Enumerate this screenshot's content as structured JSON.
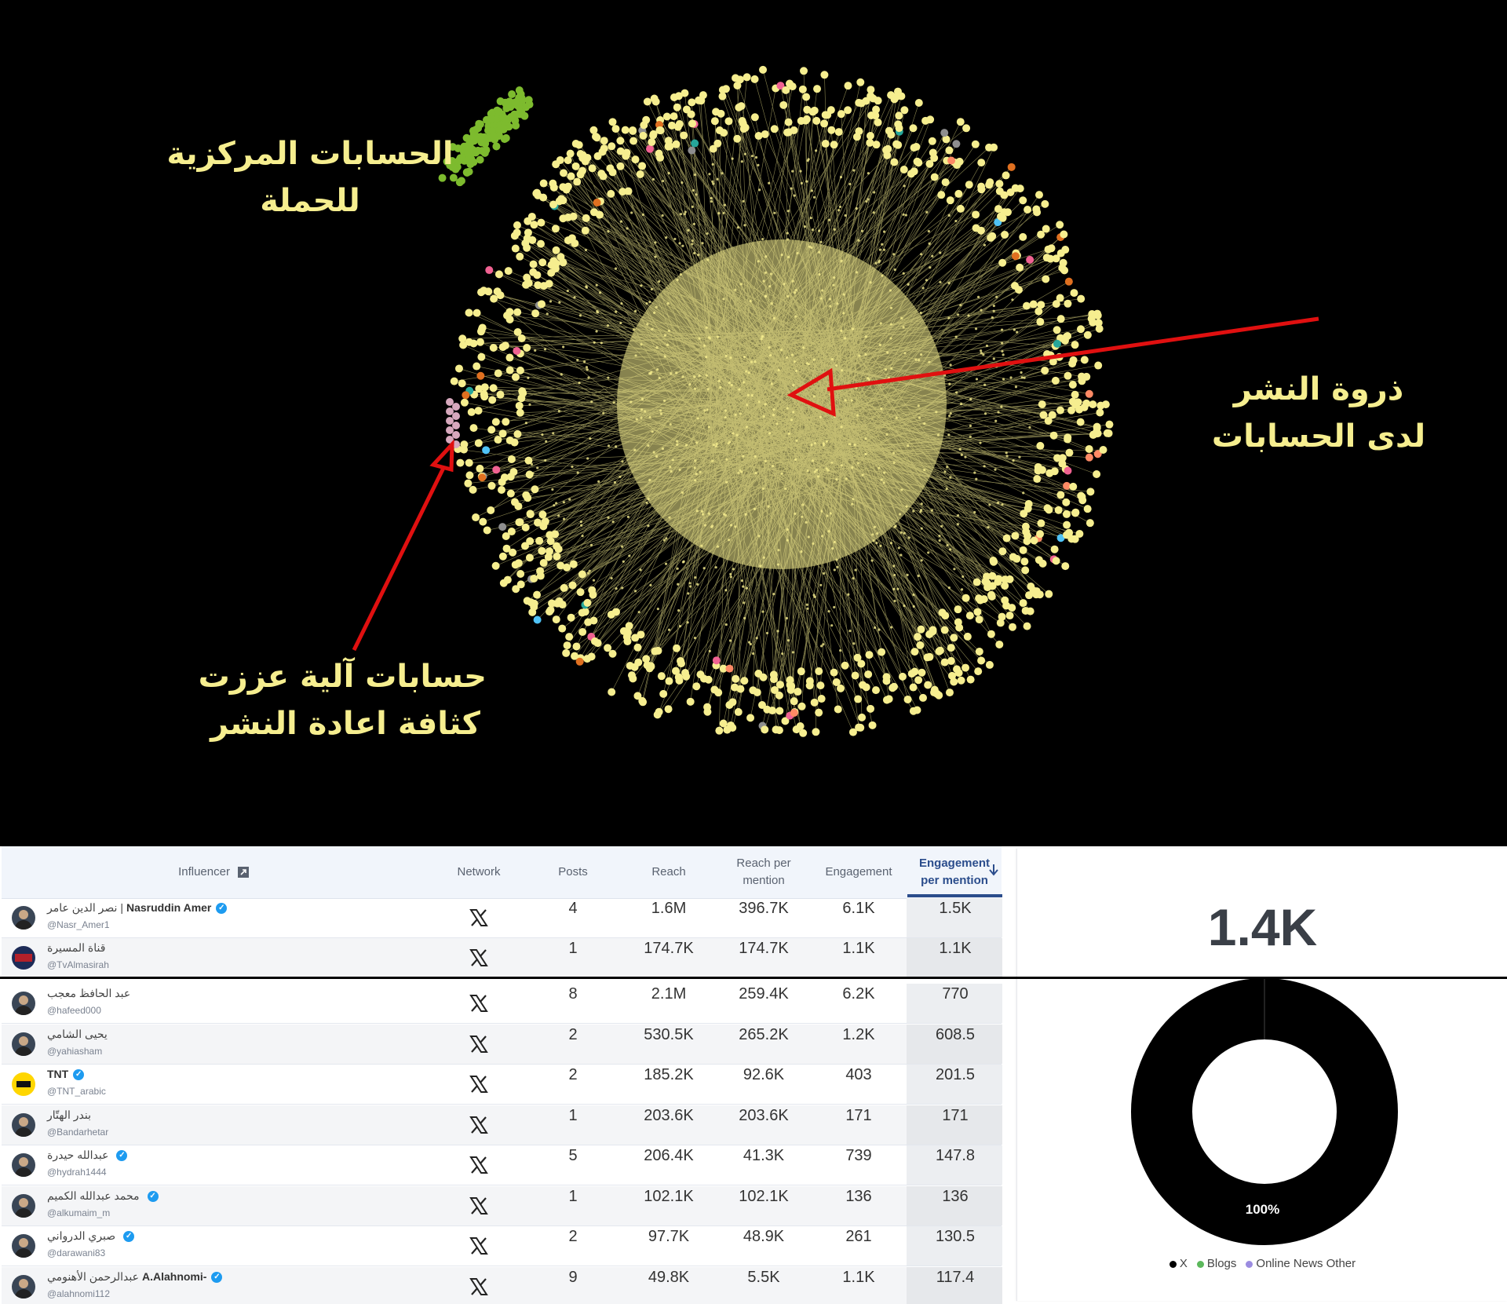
{
  "network_panel": {
    "label_central": [
      "الحسابات المركزية",
      "للحملة"
    ],
    "label_peak": [
      "ذروة النشر",
      "لدى الحسابات"
    ],
    "label_bots": [
      "حسابات آلية عززت",
      "كثافة اعادة النشر"
    ],
    "node_color": "#f6ee8f",
    "cluster_color": "#7dbb2e",
    "arrow_color": "#e01010"
  },
  "table": {
    "headers": {
      "influencer": "Influencer",
      "network": "Network",
      "posts": "Posts",
      "reach": "Reach",
      "reach_per_mention": [
        "Reach per",
        "mention"
      ],
      "engagement": "Engagement",
      "engagement_per_mention": [
        "Engagement",
        "per mention"
      ]
    },
    "rows": [
      {
        "name": "Nasruddin Amer",
        "name_ar": "نصر الدين عامر |",
        "handle": "@Nasr_Amer1",
        "verified": true,
        "network": "x-icon",
        "posts": "4",
        "reach": "1.6M",
        "rpm": "396.7K",
        "eng": "6.1K",
        "epm": "1.5K"
      },
      {
        "name": "",
        "name_ar": "قناة المسيرة",
        "handle": "@TvAlmasirah",
        "verified": false,
        "network": "x-icon",
        "posts": "1",
        "reach": "174.7K",
        "rpm": "174.7K",
        "eng": "1.1K",
        "epm": "1.1K"
      },
      {
        "name": "",
        "name_ar": "عبد الحافظ معجب",
        "handle": "@hafeed000",
        "verified": false,
        "network": "x-icon",
        "posts": "8",
        "reach": "2.1M",
        "rpm": "259.4K",
        "eng": "6.2K",
        "epm": "770"
      },
      {
        "name": "",
        "name_ar": "يحيى الشامي",
        "handle": "@yahiasham",
        "verified": false,
        "network": "x-icon",
        "posts": "2",
        "reach": "530.5K",
        "rpm": "265.2K",
        "eng": "1.2K",
        "epm": "608.5"
      },
      {
        "name": "TNT",
        "name_ar": "",
        "handle": "@TNT_arabic",
        "verified": true,
        "network": "x-icon",
        "posts": "2",
        "reach": "185.2K",
        "rpm": "92.6K",
        "eng": "403",
        "epm": "201.5"
      },
      {
        "name": "",
        "name_ar": "بندر الهتّار",
        "handle": "@Bandarhetar",
        "verified": false,
        "network": "x-icon",
        "posts": "1",
        "reach": "203.6K",
        "rpm": "203.6K",
        "eng": "171",
        "epm": "171"
      },
      {
        "name": "",
        "name_ar": "عبدالله حيدرة",
        "handle": "@hydrah1444",
        "verified": true,
        "network": "x-icon",
        "posts": "5",
        "reach": "206.4K",
        "rpm": "41.3K",
        "eng": "739",
        "epm": "147.8"
      },
      {
        "name": "",
        "name_ar": "محمد عبدالله الكميم",
        "handle": "@alkumaim_m",
        "verified": true,
        "network": "x-icon",
        "posts": "1",
        "reach": "102.1K",
        "rpm": "102.1K",
        "eng": "136",
        "epm": "136"
      },
      {
        "name": "",
        "name_ar": "صبري الدرواني",
        "handle": "@darawani83",
        "verified": true,
        "network": "x-icon",
        "posts": "2",
        "reach": "97.7K",
        "rpm": "48.9K",
        "eng": "261",
        "epm": "130.5"
      },
      {
        "name": "A.Alahnomi-",
        "name_ar": "عبدالرحمن الأهنومي",
        "handle": "@alahnomi112",
        "verified": true,
        "network": "x-icon",
        "posts": "9",
        "reach": "49.8K",
        "rpm": "5.5K",
        "eng": "1.1K",
        "epm": "117.4"
      }
    ]
  },
  "side": {
    "big_value": "1.4K",
    "donut_percent": "100%",
    "legend": [
      {
        "label": "X",
        "color": "#000000"
      },
      {
        "label": "Blogs",
        "color": "#5cb85c"
      },
      {
        "label": "Online News Other",
        "color": "#9b8ce0"
      }
    ]
  },
  "chart_data": {
    "type": "pie",
    "categories": [
      "X",
      "Blogs",
      "Online News Other"
    ],
    "values": [
      100,
      0,
      0
    ],
    "title": "",
    "data_labels": [
      "100%"
    ]
  }
}
